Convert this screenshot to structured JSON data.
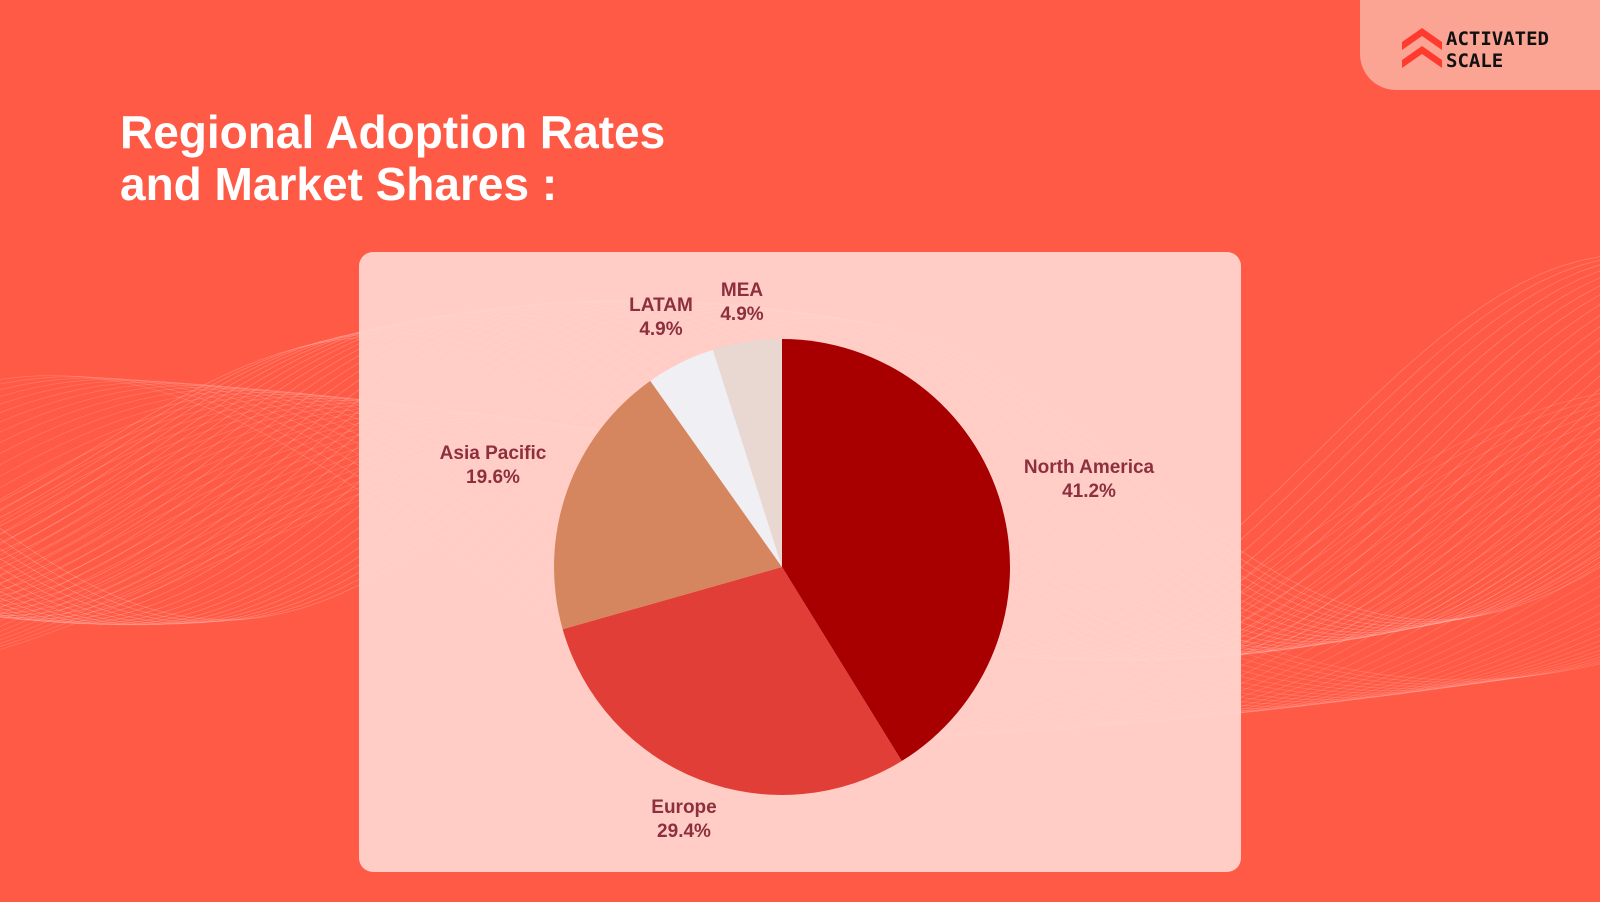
{
  "logo": {
    "line1": "ACTIVATED",
    "line2": "SCALE",
    "icon": "activated-scale-chevron-icon",
    "color": "#FF3B2F"
  },
  "title": {
    "line1": "Regional Adoption Rates",
    "line2": "and Market Shares :"
  },
  "colors": {
    "background": "#FF5A45",
    "card": "#FFD6D0",
    "label": "#8E2F3E"
  },
  "chart_data": {
    "type": "pie",
    "title": "",
    "start": "12 o'clock",
    "direction": "clockwise",
    "slices": [
      {
        "label": "North America",
        "value": 41.2,
        "display": "41.2%",
        "color": "#A80000"
      },
      {
        "label": "Europe",
        "value": 29.4,
        "display": "29.4%",
        "color": "#E03E36"
      },
      {
        "label": "Asia Pacific",
        "value": 19.6,
        "display": "19.6%",
        "color": "#D5865E"
      },
      {
        "label": "LATAM",
        "value": 4.9,
        "display": "4.9%",
        "color": "#EFEFF4"
      },
      {
        "label": "MEA",
        "value": 4.9,
        "display": "4.9%",
        "color": "#E8D8D1"
      }
    ]
  }
}
